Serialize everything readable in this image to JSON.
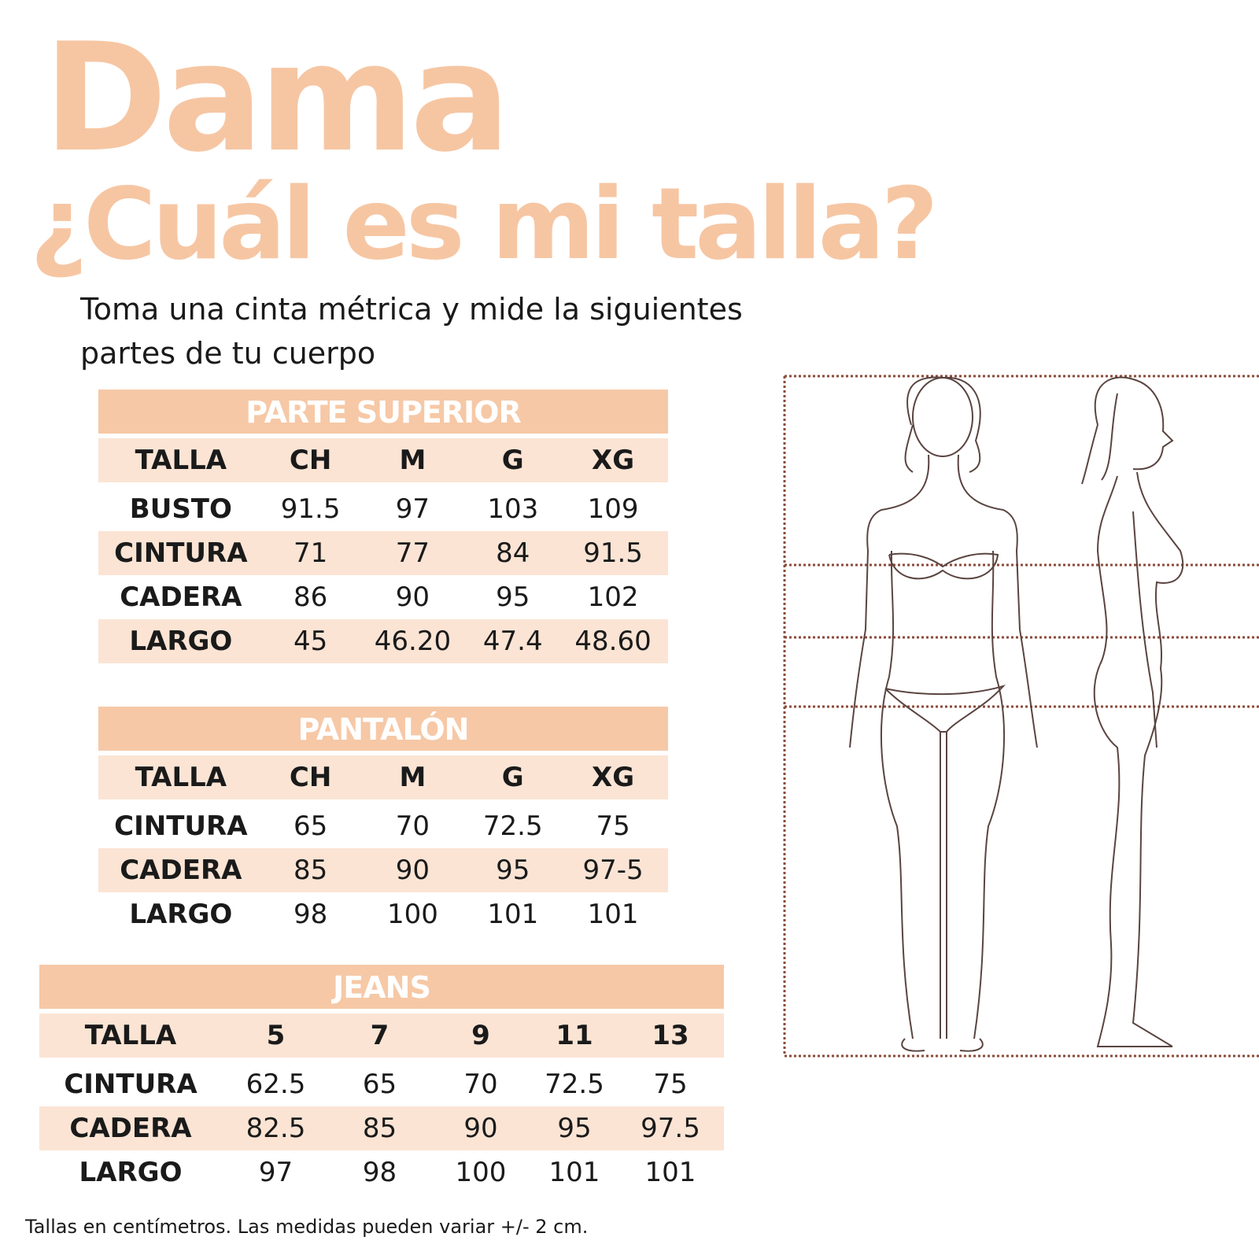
{
  "title": "Dama",
  "question": "¿Cuál es mi talla?",
  "intro": "Toma una cinta métrica y mide la siguientes partes de tu cuerpo",
  "colors": {
    "accent": "#f6c6a3",
    "row_shade": "#fbe4d4",
    "guide_lines": "#8b4a3a"
  },
  "tables": [
    {
      "title": "PARTE SUPERIOR",
      "header": [
        "TALLA",
        "CH",
        "M",
        "G",
        "XG"
      ],
      "rows": [
        [
          "BUSTO",
          "91.5",
          "97",
          "103",
          "109"
        ],
        [
          "CINTURA",
          "71",
          "77",
          "84",
          "91.5"
        ],
        [
          "CADERA",
          "86",
          "90",
          "95",
          "102"
        ],
        [
          "LARGO",
          "45",
          "46.20",
          "47.4",
          "48.60"
        ]
      ]
    },
    {
      "title": "PANTALÓN",
      "header": [
        "TALLA",
        "CH",
        "M",
        "G",
        "XG"
      ],
      "rows": [
        [
          "CINTURA",
          "65",
          "70",
          "72.5",
          "75"
        ],
        [
          "CADERA",
          "85",
          "90",
          "95",
          "97-5"
        ],
        [
          "LARGO",
          "98",
          "100",
          "101",
          "101"
        ]
      ]
    },
    {
      "title": "JEANS",
      "header": [
        "TALLA",
        "5",
        "7",
        "9",
        "11",
        "13"
      ],
      "rows": [
        [
          "CINTURA",
          "62.5",
          "65",
          "70",
          "72.5",
          "75"
        ],
        [
          "CADERA",
          "82.5",
          "85",
          "90",
          "95",
          "97.5"
        ],
        [
          "LARGO",
          "97",
          "98",
          "100",
          "101",
          "101"
        ]
      ]
    }
  ],
  "footnote": "Tallas en centímetros. Las medidas pueden variar +/- 2 cm.",
  "illustration": {
    "figures": [
      "front-view",
      "side-view"
    ]
  }
}
